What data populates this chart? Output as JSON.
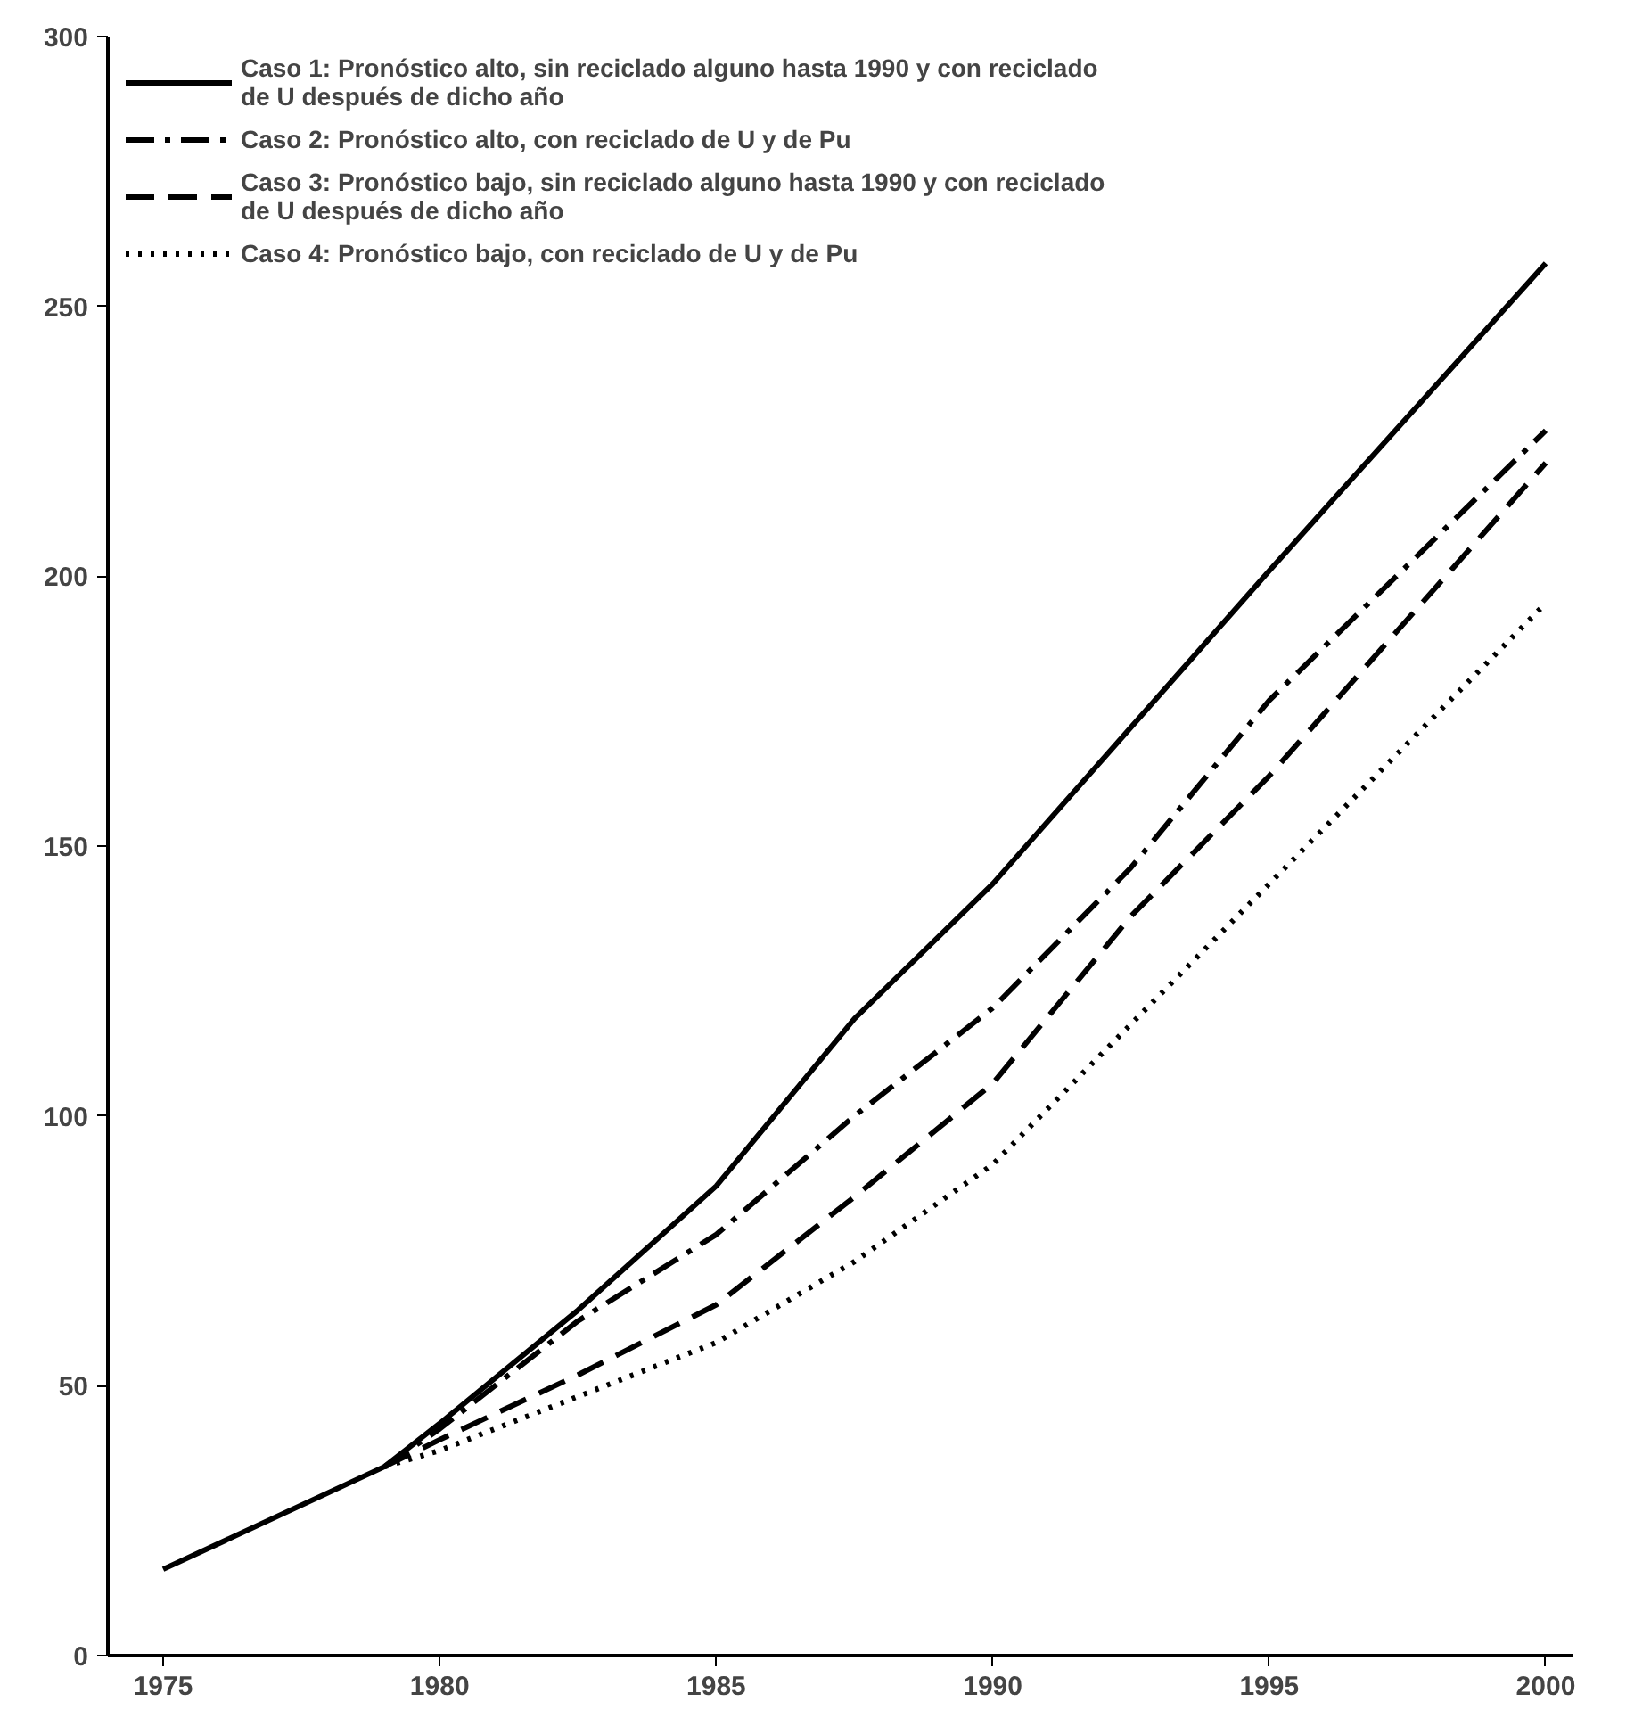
{
  "chart_data": {
    "type": "line",
    "x": [
      1975,
      1979,
      1980,
      1982.5,
      1985,
      1987.5,
      1990,
      1992.5,
      1995,
      2000
    ],
    "series": [
      {
        "name": "Caso 1: Pronóstico alto, sin reciclado alguno hasta 1990 y con reciclado de U después de dicho año",
        "color": "#000000",
        "line_style": "solid",
        "values": [
          16,
          35,
          43,
          64,
          87,
          118,
          143,
          172,
          201,
          258
        ]
      },
      {
        "name": "Caso 2: Pronóstico alto, con reciclado de U y de Pu",
        "color": "#000000",
        "line_style": "dashdot",
        "values": [
          null,
          35,
          42,
          62,
          78,
          100,
          120,
          146,
          177,
          227
        ]
      },
      {
        "name": "Caso 3: Pronóstico bajo, sin reciclado alguno hasta 1990 y con reciclado de U después de dicho año",
        "color": "#000000",
        "line_style": "dashed",
        "values": [
          null,
          35,
          40,
          52,
          65,
          85,
          106,
          137,
          163,
          221
        ]
      },
      {
        "name": "Caso 4: Pronóstico bajo, con reciclado de U y de Pu",
        "color": "#000000",
        "line_style": "dotted",
        "values": [
          null,
          35,
          38,
          48,
          58,
          73,
          91,
          117,
          143,
          195
        ]
      }
    ],
    "xlim": [
      1974,
      2000.5
    ],
    "ylim": [
      0,
      300
    ],
    "xticks": [
      1975,
      1980,
      1985,
      1990,
      1995,
      2000
    ],
    "yticks": [
      0,
      50,
      100,
      150,
      200,
      250,
      300
    ],
    "grid": false,
    "legend": "top left",
    "marker": "none"
  }
}
